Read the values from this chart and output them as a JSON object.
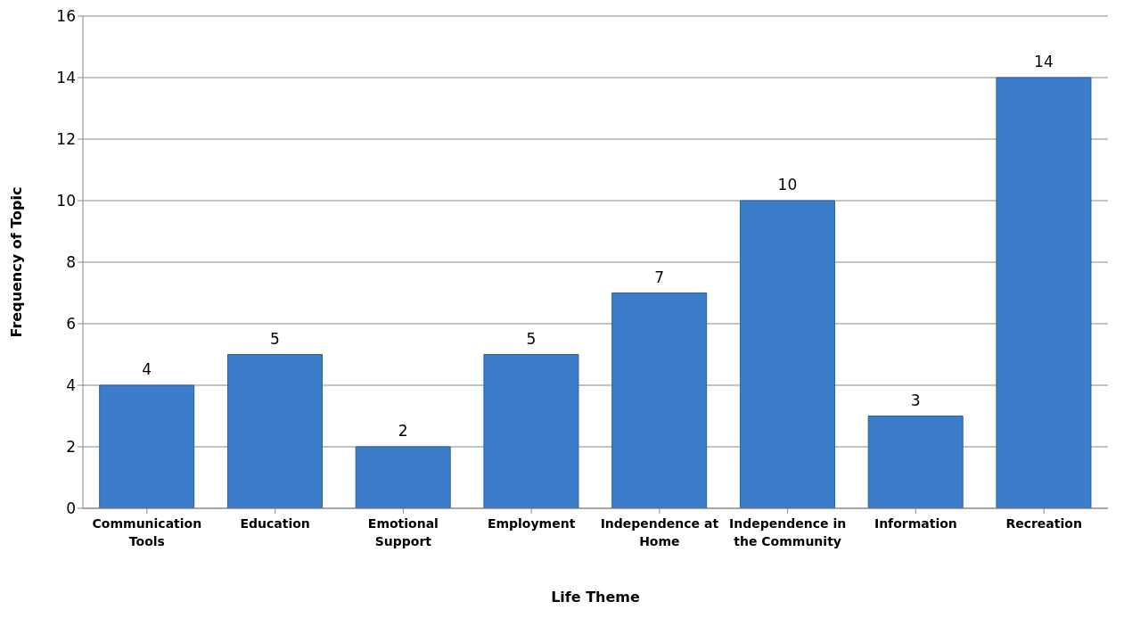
{
  "chart_data": {
    "type": "bar",
    "xlabel": "Life Theme",
    "ylabel": "Frequency of Topic",
    "categories": [
      "Communication Tools",
      "Education",
      "Emotional Support",
      "Employment",
      "Independence at Home",
      "Independence in the Community",
      "Information",
      "Recreation"
    ],
    "values": [
      4,
      5,
      2,
      5,
      7,
      10,
      3,
      14
    ],
    "color": "#3b7dc8",
    "ylim": [
      0,
      16
    ],
    "yticks": [
      0,
      2,
      4,
      6,
      8,
      10,
      12,
      14,
      16
    ],
    "grid": "y",
    "data_labels": true
  }
}
